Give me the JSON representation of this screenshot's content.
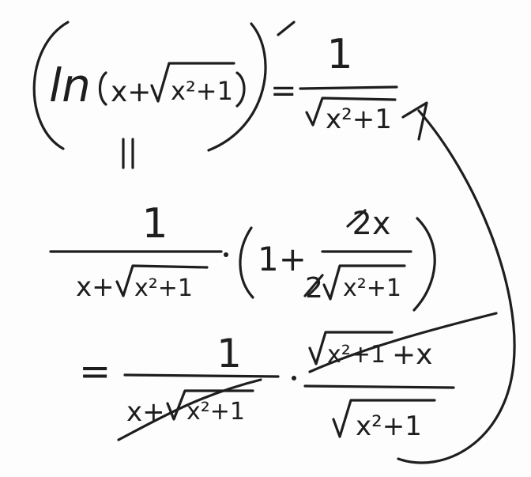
{
  "derivation": {
    "lhs": {
      "func": "ln",
      "arg_x": "x+",
      "arg_rad": "x²+1",
      "prime": "′",
      "equals": "=",
      "rhs_num": "1",
      "rhs_den": "x²+1"
    },
    "step1": {
      "equals_mark": "∥",
      "frac1_num": "1",
      "frac1_den_x": "x+",
      "frac1_den_rad": "x²+1",
      "dot": "·",
      "one_plus": "1+",
      "frac2_num": "2x",
      "frac2_den_coef": "2",
      "frac2_den_rad": "x²+1"
    },
    "step2": {
      "equals": "=",
      "frac1_num": "1",
      "frac1_den_x": "x+",
      "frac1_den_rad": "x²+1",
      "dot": "·",
      "frac2_num_rad": "x²+1",
      "frac2_num_tail": "+x",
      "frac2_den_rad": "x²+1"
    }
  },
  "ink_color": "#1e1e1e"
}
